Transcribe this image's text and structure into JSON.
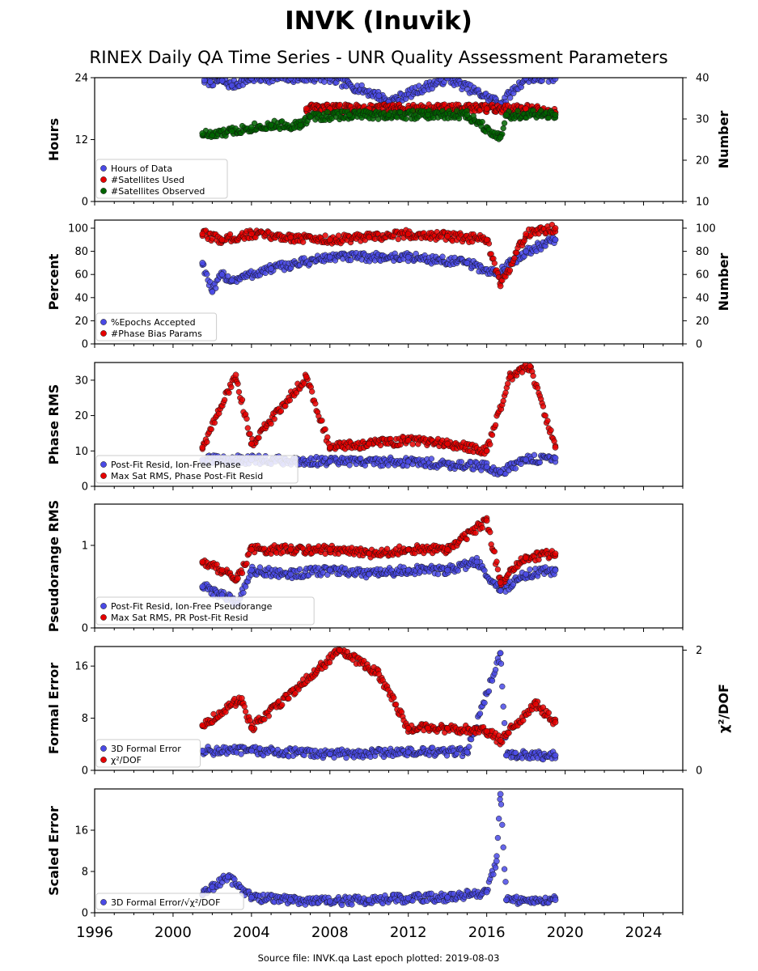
{
  "title": "INVK (Inuvik)",
  "subtitle": "RINEX Daily QA Time Series - UNR Quality Assessment Parameters",
  "footer": "Source file: INVK.qa Last epoch plotted: 2019-08-03",
  "colors": {
    "blue": "#4a4ae6",
    "red": "#e60000",
    "green": "#006400",
    "edge": "#1a1a1a"
  },
  "x_axis": {
    "range": [
      1996,
      2026
    ],
    "ticks": [
      1996,
      2000,
      2004,
      2008,
      2012,
      2016,
      2020,
      2024
    ]
  },
  "chart_data": [
    {
      "type": "scatter",
      "ylabel": "Hours",
      "ylim": [
        0,
        24
      ],
      "yticks": [
        "0",
        "12",
        "24"
      ],
      "y2label": "Number",
      "y2lim": [
        10,
        40
      ],
      "y2ticks": [
        "10",
        "20",
        "30",
        "40"
      ],
      "legend": [
        "Hours of Data",
        "#Satellites Used",
        "#Satellites Observed"
      ],
      "series": [
        {
          "name": "Hours of Data",
          "color": "blue",
          "axis": "left",
          "x": [
            2001.6,
            2001.9,
            2002.5,
            2003.0,
            2004.0,
            2006.0,
            2008.0,
            2010.5,
            2011.0,
            2014.0,
            2016.7,
            2018.0,
            2019.5
          ],
          "values": [
            23.5,
            23.2,
            23.4,
            22.5,
            23.9,
            23.9,
            23.9,
            20.5,
            19.3,
            23.9,
            19.0,
            23.9,
            23.8
          ]
        },
        {
          "name": "#Satellites Used",
          "color": "red",
          "axis": "right",
          "x": [
            2006.8,
            2008.0,
            2010.0,
            2012.0,
            2014.0,
            2016.0,
            2018.0,
            2019.5
          ],
          "values": [
            32.5,
            32.5,
            32.5,
            32.5,
            32.5,
            32.5,
            32.5,
            31.5
          ]
        },
        {
          "name": "#Satellites Observed",
          "color": "green",
          "axis": "right",
          "x": [
            2001.5,
            2002.0,
            2003.0,
            2004.0,
            2005.0,
            2006.5,
            2007.0,
            2009.0,
            2011.0,
            2013.0,
            2015.0,
            2016.7,
            2017.0,
            2019.5
          ],
          "values": [
            26.5,
            26.0,
            27.0,
            28.0,
            28.5,
            28.5,
            30.5,
            31.0,
            31.0,
            31.0,
            31.0,
            25.5,
            31.0,
            31.0
          ]
        }
      ]
    },
    {
      "type": "scatter",
      "ylabel": "Percent",
      "ylim": [
        0,
        107
      ],
      "yticks": [
        "0",
        "20",
        "40",
        "60",
        "80",
        "100"
      ],
      "y2label": "Number",
      "y2lim": [
        0,
        107
      ],
      "y2ticks": [
        "0",
        "20",
        "40",
        "60",
        "80",
        "100"
      ],
      "legend": [
        "%Epochs Accepted",
        "#Phase Bias Params"
      ],
      "series": [
        {
          "name": "%Epochs Accepted",
          "color": "blue",
          "axis": "left",
          "x": [
            2001.5,
            2002.0,
            2002.5,
            2003.0,
            2005.0,
            2008.0,
            2012.0,
            2015.0,
            2016.5,
            2018.0,
            2019.5
          ],
          "values": [
            70,
            45,
            60,
            55,
            65,
            75,
            75,
            70,
            60,
            80,
            90
          ]
        },
        {
          "name": "#Phase Bias Params",
          "color": "red",
          "axis": "right",
          "x": [
            2001.5,
            2002.5,
            2004.0,
            2006.0,
            2008.0,
            2010.0,
            2012.0,
            2014.0,
            2016.0,
            2016.7,
            2018.0,
            2019.5
          ],
          "values": [
            95,
            90,
            95,
            92,
            90,
            92,
            95,
            93,
            90,
            50,
            95,
            100
          ]
        }
      ]
    },
    {
      "type": "scatter",
      "ylabel": "Phase RMS",
      "ylim": [
        0,
        35
      ],
      "yticks": [
        "0",
        "10",
        "20",
        "30"
      ],
      "legend": [
        "Post-Fit Resid, Ion-Free Phase",
        "Max Sat RMS, Phase Post-Fit Resid"
      ],
      "series": [
        {
          "name": "Post-Fit Resid, Ion-Free Phase",
          "color": "blue",
          "x": [
            2001.5,
            2004.0,
            2008.0,
            2012.0,
            2016.0,
            2016.7,
            2018.0,
            2019.5
          ],
          "values": [
            7.5,
            7.5,
            7.0,
            7.0,
            5.5,
            4.0,
            7.5,
            8.0
          ]
        },
        {
          "name": "Max Sat RMS, Phase Post-Fit Resid",
          "color": "red",
          "x": [
            2001.5,
            2003.2,
            2004.0,
            2006.8,
            2008.0,
            2010.0,
            2012.0,
            2014.0,
            2016.0,
            2017.2,
            2018.2,
            2019.5
          ],
          "values": [
            11,
            31.5,
            12,
            31,
            11,
            12,
            13,
            12,
            10,
            31,
            34,
            11
          ]
        }
      ]
    },
    {
      "type": "scatter",
      "ylabel": "Pseudorange RMS",
      "ylim": [
        0,
        1.5
      ],
      "yticks": [
        "0",
        "1"
      ],
      "legend": [
        "Post-Fit Resid, Ion-Free Pseudorange",
        "Max Sat RMS, PR Post-Fit Resid"
      ],
      "series": [
        {
          "name": "Post-Fit Resid, Ion-Free Pseudorange",
          "color": "blue",
          "x": [
            2001.5,
            2002.5,
            2003.3,
            2004.0,
            2006.0,
            2008.0,
            2010.0,
            2012.0,
            2014.0,
            2015.5,
            2016.7,
            2018.0,
            2019.5
          ],
          "values": [
            0.5,
            0.4,
            0.3,
            0.7,
            0.65,
            0.7,
            0.65,
            0.7,
            0.7,
            0.8,
            0.45,
            0.65,
            0.7
          ]
        },
        {
          "name": "Max Sat RMS, PR Post-Fit Resid",
          "color": "red",
          "x": [
            2001.5,
            2002.5,
            2003.3,
            2004.0,
            2006.0,
            2008.0,
            2010.0,
            2012.0,
            2014.0,
            2016.0,
            2016.7,
            2018.0,
            2019.5
          ],
          "values": [
            0.8,
            0.7,
            0.6,
            0.95,
            0.95,
            0.95,
            0.9,
            0.95,
            0.95,
            1.3,
            0.55,
            0.85,
            0.9
          ]
        }
      ]
    },
    {
      "type": "scatter",
      "ylabel": "Formal Error",
      "ylim": [
        0,
        19
      ],
      "yticks": [
        "0",
        "8",
        "16"
      ],
      "y2label": "χ²/DOF",
      "y2lim": [
        0,
        2.06
      ],
      "y2ticks": [
        "0",
        "2"
      ],
      "legend": [
        "3D Formal Error",
        "χ²/DOF"
      ],
      "series": [
        {
          "name": "3D Formal Error",
          "color": "blue",
          "axis": "left",
          "x": [
            2001.5,
            2004.0,
            2008.0,
            2012.0,
            2015.0,
            2016.7,
            2017.0,
            2019.5
          ],
          "values": [
            3.0,
            3.0,
            2.5,
            2.8,
            2.8,
            18.0,
            2.3,
            2.3
          ]
        },
        {
          "name": "χ²/DOF",
          "color": "red",
          "axis": "right",
          "x": [
            2001.5,
            2003.5,
            2004.0,
            2008.5,
            2010.5,
            2012.0,
            2013.0,
            2014.0,
            2016.0,
            2016.7,
            2018.5,
            2019.5
          ],
          "values": [
            0.75,
            1.2,
            0.7,
            2.0,
            1.6,
            0.7,
            0.7,
            0.7,
            0.65,
            0.5,
            1.1,
            0.8
          ]
        }
      ]
    },
    {
      "type": "scatter",
      "ylabel": "Scaled Error",
      "ylim": [
        0,
        24
      ],
      "yticks": [
        "0",
        "8",
        "16"
      ],
      "legend": [
        "3D Formal Error/√χ²/DOF"
      ],
      "series": [
        {
          "name": "3D Formal Error/√χ²/DOF",
          "color": "blue",
          "x": [
            2001.5,
            2002.0,
            2002.8,
            2004.0,
            2006.0,
            2008.0,
            2010.0,
            2012.0,
            2014.0,
            2016.0,
            2016.5,
            2016.7,
            2017.0,
            2019.5
          ],
          "values": [
            3.5,
            5.0,
            7.0,
            3.0,
            2.5,
            2.2,
            2.5,
            2.8,
            3.0,
            4.0,
            10.0,
            23.0,
            2.5,
            2.5
          ]
        }
      ]
    }
  ]
}
